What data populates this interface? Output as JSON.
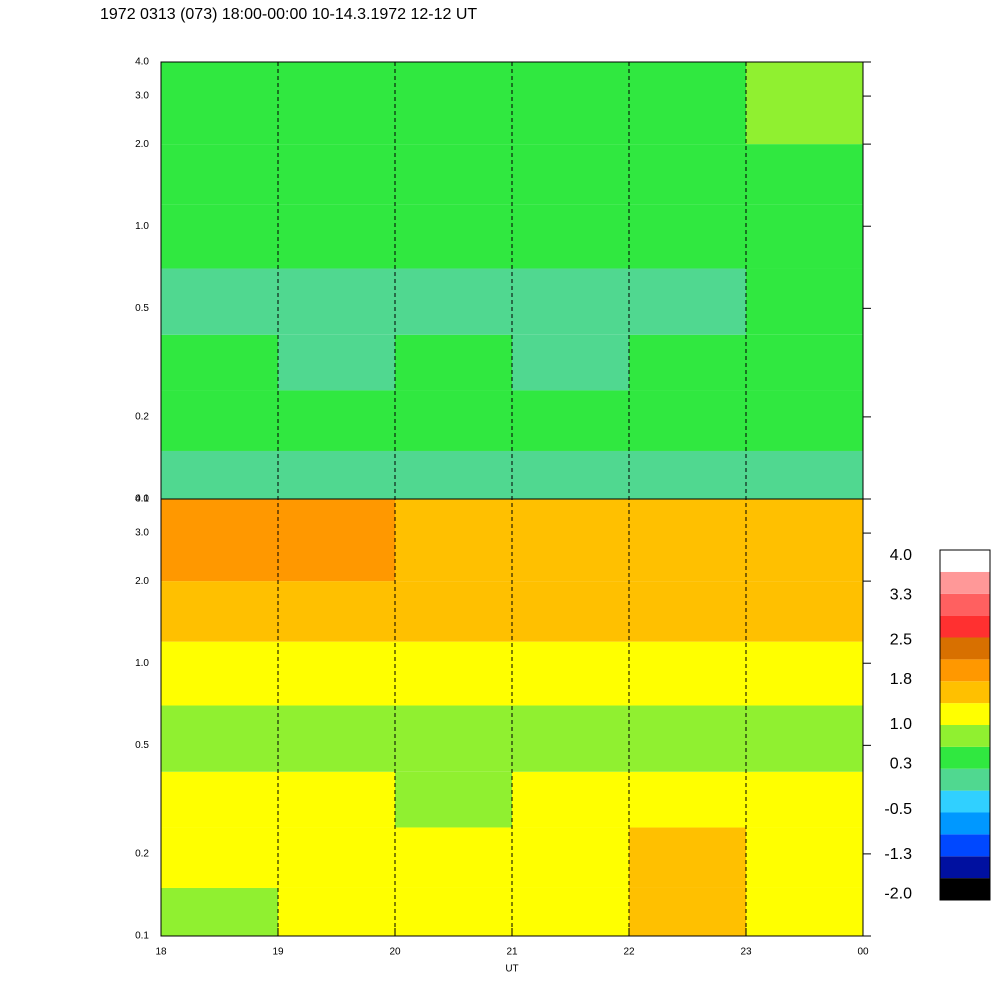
{
  "chart_data": {
    "type": "heatmap",
    "title": "1972 0313 (073) 18:00-00:00 10-14.3.1972  12-12 UT",
    "xlabel": "UT",
    "xlim": [
      18,
      24
    ],
    "xticks": [
      18,
      19,
      20,
      21,
      22,
      23,
      {
        "value": 24,
        "label": "00"
      }
    ],
    "ylim": [
      0.1,
      4
    ],
    "log_y": true,
    "yticks": [
      0.1,
      0.2,
      0.5,
      {
        "value": 1,
        "label": "1.0"
      },
      {
        "value": 2,
        "label": "2.0"
      },
      {
        "value": 3,
        "label": "3.0"
      },
      {
        "value": 4,
        "label": "4.0"
      }
    ],
    "grid": true,
    "xbins": [
      18,
      19,
      20,
      21,
      22,
      23,
      24
    ],
    "ybins": [
      0.1,
      0.15,
      0.25,
      0.4,
      0.7,
      1.2,
      2.0,
      4.0
    ],
    "panels": [
      {
        "values": [
          [
            0.0,
            0.0,
            0.0,
            0.0,
            0.0,
            0.0
          ],
          [
            0.4,
            0.4,
            0.4,
            0.4,
            0.3,
            0.4
          ],
          [
            0.3,
            0.2,
            0.3,
            0.2,
            0.3,
            0.3
          ],
          [
            0.2,
            0.1,
            0.2,
            0.1,
            0.2,
            0.3
          ],
          [
            0.4,
            0.3,
            0.4,
            0.4,
            0.4,
            0.4
          ],
          [
            0.6,
            0.5,
            0.6,
            0.5,
            0.6,
            0.6
          ],
          [
            0.6,
            0.5,
            0.6,
            0.5,
            0.6,
            0.7
          ]
        ]
      },
      {
        "values": [
          [
            0.9,
            1.0,
            1.0,
            1.3,
            1.4,
            1.1
          ],
          [
            1.2,
            1.2,
            1.1,
            1.3,
            1.4,
            1.2
          ],
          [
            1.0,
            1.0,
            0.9,
            1.3,
            1.3,
            1.1
          ],
          [
            0.8,
            0.8,
            0.8,
            0.9,
            0.9,
            0.8
          ],
          [
            1.3,
            1.2,
            1.3,
            1.2,
            1.3,
            1.2
          ],
          [
            1.7,
            1.7,
            1.7,
            1.6,
            1.7,
            1.6
          ],
          [
            1.8,
            1.8,
            1.7,
            1.7,
            1.7,
            1.7
          ]
        ]
      }
    ],
    "colorbar": {
      "clim": [
        -2.1,
        4.1
      ],
      "colors": [
        "#000000",
        "#0010a0",
        "#0048ff",
        "#0098ff",
        "#30d0ff",
        "#50d890",
        "#30e840",
        "#90f030",
        "#ffff00",
        "#ffc000",
        "#ff9800",
        "#d87000",
        "#ff3030",
        "#ff6060",
        "#ff9898",
        "#ffffff"
      ],
      "ticks": [
        {
          "value": 4,
          "label": "4.0"
        },
        3.3,
        2.5,
        1.8,
        {
          "value": 1,
          "label": "1.0"
        },
        0.3,
        -0.5,
        -1.3,
        {
          "value": -2,
          "label": "-2.0"
        }
      ]
    }
  }
}
